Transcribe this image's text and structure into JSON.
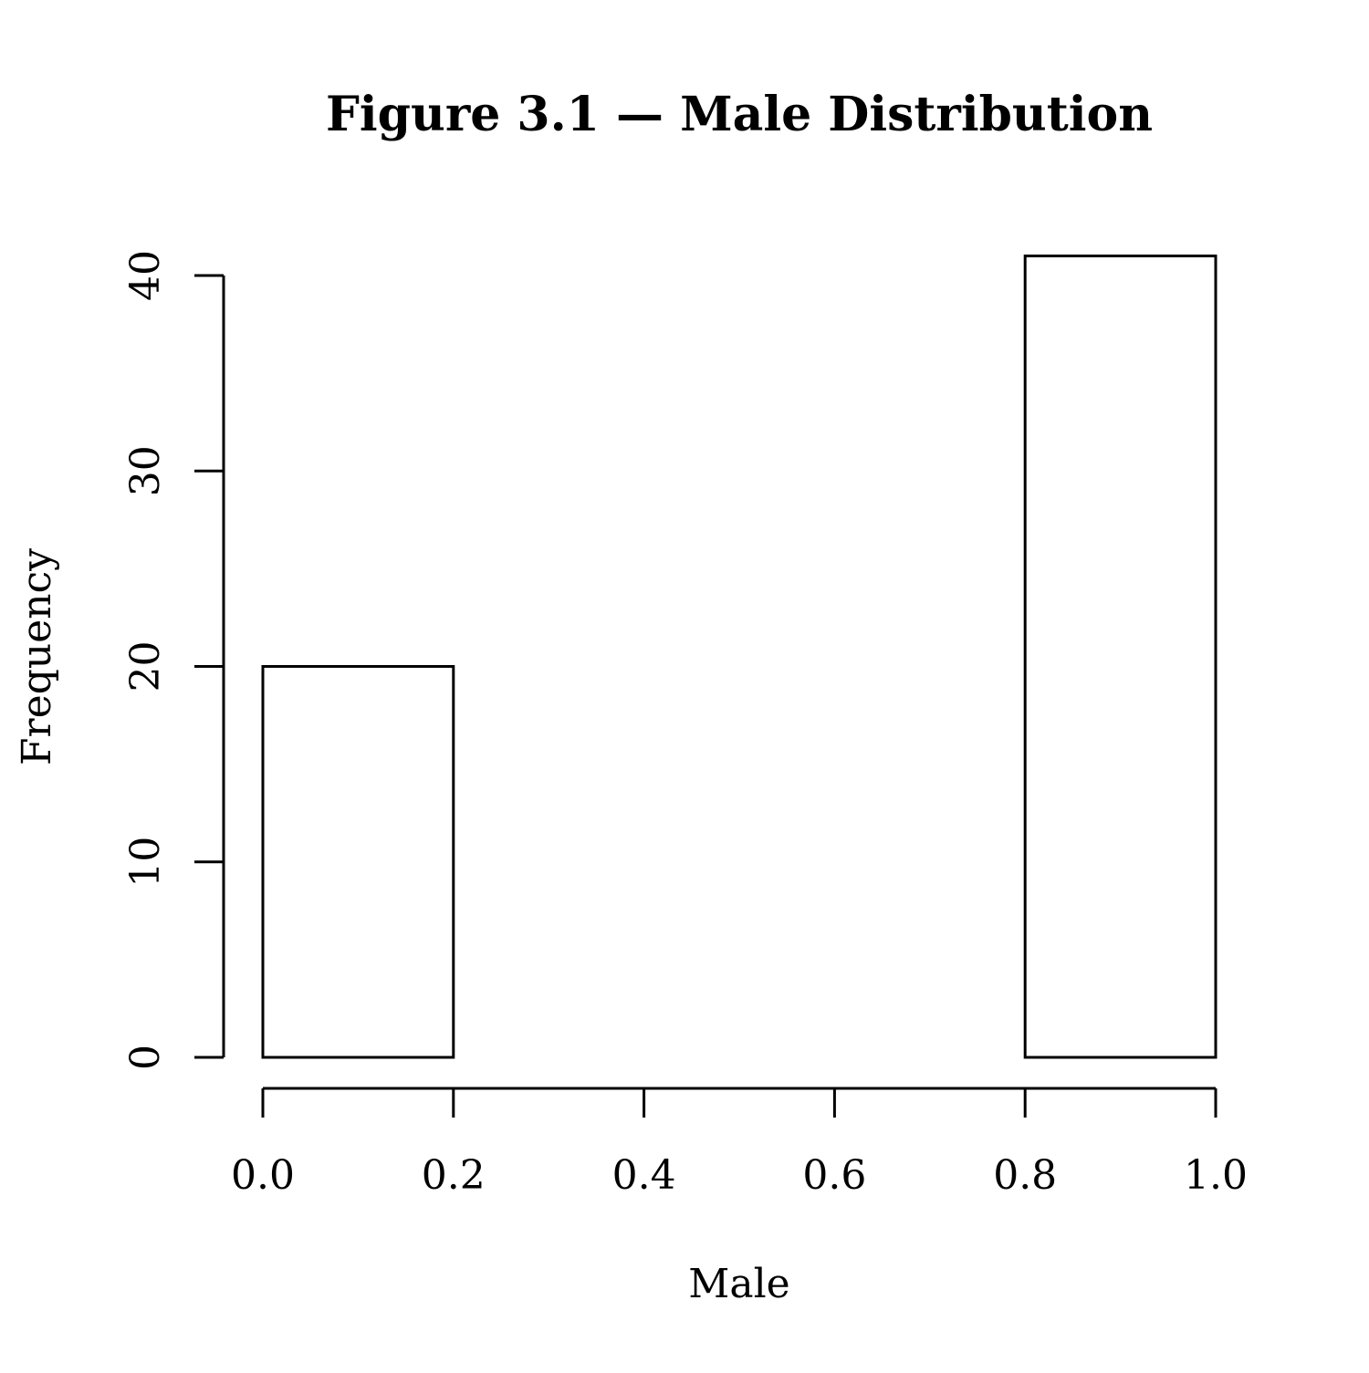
{
  "chart_data": {
    "type": "bar",
    "title": "Figure 3.1 — Male Distribution",
    "xlabel": "Male",
    "ylabel": "Frequency",
    "bins": [
      {
        "start": 0.0,
        "end": 0.2,
        "value": 20
      },
      {
        "start": 0.2,
        "end": 0.4,
        "value": 0
      },
      {
        "start": 0.4,
        "end": 0.6,
        "value": 0
      },
      {
        "start": 0.6,
        "end": 0.8,
        "value": 0
      },
      {
        "start": 0.8,
        "end": 1.0,
        "value": 41
      }
    ],
    "xlim": [
      0.0,
      1.0
    ],
    "ylim": [
      0,
      40
    ],
    "x_ticks": [
      "0.0",
      "0.2",
      "0.4",
      "0.6",
      "0.8",
      "1.0"
    ],
    "y_ticks": [
      "0",
      "10",
      "20",
      "30",
      "40"
    ],
    "grid": false,
    "colors": {
      "bar_fill": "#ffffff",
      "bar_stroke": "#000000",
      "axis": "#000000"
    }
  }
}
